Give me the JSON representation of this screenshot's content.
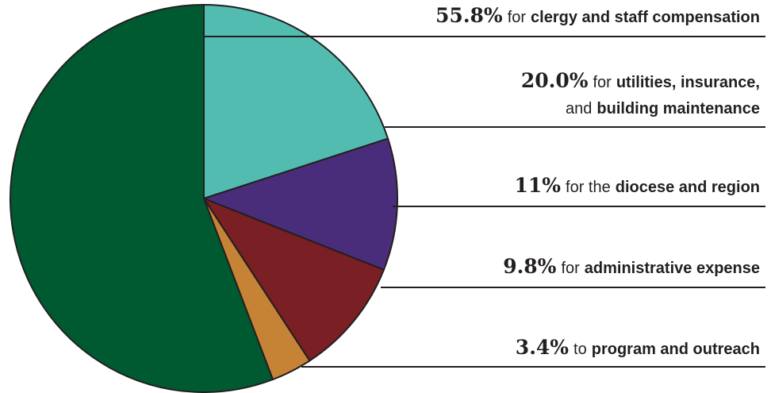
{
  "chart_data": {
    "type": "pie",
    "values": [
      20.0,
      11,
      9.8,
      3.4,
      55.8
    ],
    "value_labels": [
      "20.0%",
      "11%",
      "9.8%",
      "3.4%",
      "55.8%"
    ],
    "colors": [
      "#52bcb0",
      "#4a2d7a",
      "#7a1f24",
      "#c68336",
      "#005a31"
    ],
    "labels": [
      [
        [
          {
            "text": "for",
            "bold": false
          },
          {
            "text": "utilities, insurance,",
            "bold": true
          }
        ],
        [
          {
            "text": "and",
            "bold": false
          },
          {
            "text": "building maintenance",
            "bold": true
          }
        ]
      ],
      [
        [
          {
            "text": "for the",
            "bold": false
          },
          {
            "text": "diocese and region",
            "bold": true
          }
        ]
      ],
      [
        [
          {
            "text": "for",
            "bold": false
          },
          {
            "text": "administrative expense",
            "bold": true
          }
        ]
      ],
      [
        [
          {
            "text": "to",
            "bold": false
          },
          {
            "text": "program and outreach",
            "bold": true
          }
        ]
      ],
      [
        [
          {
            "text": "for",
            "bold": false
          },
          {
            "text": "clergy and staff compensation",
            "bold": true
          }
        ]
      ]
    ]
  }
}
